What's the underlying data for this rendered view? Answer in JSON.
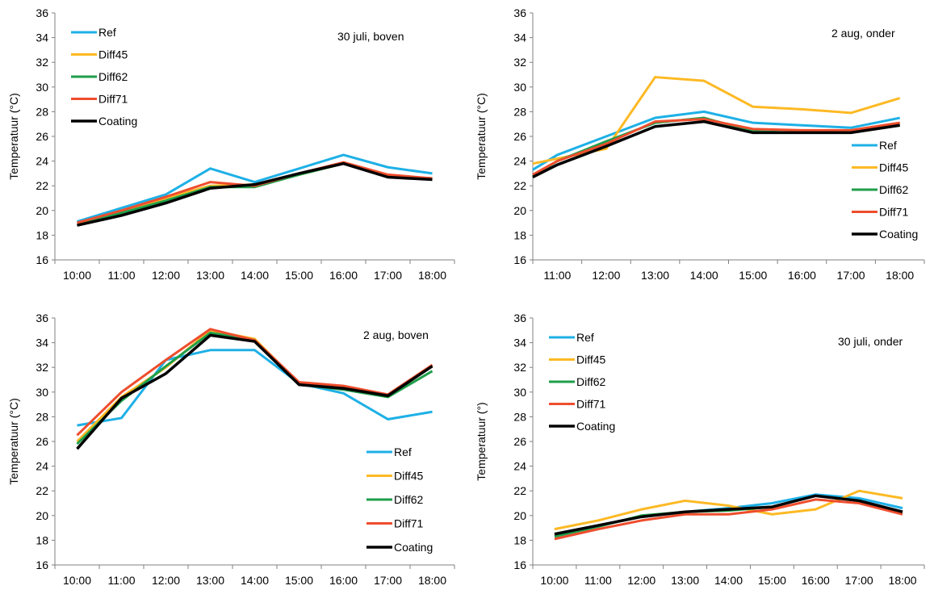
{
  "legend_colors": {
    "Ref": "#1EB0E6",
    "Diff45": "#FDB924",
    "Diff62": "#1E9E4A",
    "Diff71": "#EE4D2D",
    "Coating": "#000000"
  },
  "chart_data": [
    {
      "type": "line",
      "annotation": "30 juli, boven",
      "ylabel": "Temperatuur (°C)",
      "ylim": [
        16,
        36
      ],
      "yticks": [
        16,
        18,
        20,
        22,
        24,
        26,
        28,
        30,
        32,
        34,
        36
      ],
      "categories": [
        "10:00",
        "11:00",
        "12:00",
        "13:00",
        "14:00",
        "15:00",
        "16:00",
        "17:00",
        "18:00"
      ],
      "legend_position": "top-left",
      "series": [
        {
          "name": "Ref",
          "values": [
            19.1,
            20.2,
            21.3,
            23.4,
            22.3,
            23.4,
            24.5,
            23.5,
            23.0
          ]
        },
        {
          "name": "Diff45",
          "values": [
            19.0,
            19.9,
            21.0,
            22.0,
            22.1,
            22.9,
            23.8,
            22.8,
            22.6
          ]
        },
        {
          "name": "Diff62",
          "values": [
            19.0,
            19.8,
            20.8,
            21.9,
            21.9,
            22.9,
            23.8,
            22.8,
            22.6
          ]
        },
        {
          "name": "Diff71",
          "values": [
            19.0,
            20.0,
            21.1,
            22.3,
            22.0,
            23.0,
            23.9,
            22.9,
            22.6
          ]
        },
        {
          "name": "Coating",
          "values": [
            18.8,
            19.6,
            20.6,
            21.8,
            22.1,
            23.0,
            23.8,
            22.7,
            22.5
          ]
        }
      ]
    },
    {
      "type": "line",
      "annotation": "2 aug, onder",
      "ylabel": "Temperatuur (°C)",
      "ylim": [
        16,
        36
      ],
      "yticks": [
        16,
        18,
        20,
        22,
        24,
        26,
        28,
        30,
        32,
        34,
        36
      ],
      "categories": [
        "11:00",
        "12:00",
        "13:00",
        "14:00",
        "15:00",
        "16:00",
        "17:00",
        "18:00"
      ],
      "x_start_offset": -0.66,
      "legend_position": "right",
      "series": [
        {
          "name": "Ref",
          "values": [
            24.5,
            26.0,
            27.5,
            28.0,
            27.1,
            26.9,
            26.7,
            27.5
          ],
          "start": 23.3
        },
        {
          "name": "Diff45",
          "values": [
            24.2,
            25.0,
            30.8,
            30.5,
            28.4,
            28.2,
            27.9,
            29.1
          ],
          "start": 23.8
        },
        {
          "name": "Diff62",
          "values": [
            24.0,
            25.6,
            27.1,
            27.5,
            26.4,
            26.3,
            26.4,
            26.9
          ],
          "start": 22.8
        },
        {
          "name": "Diff71",
          "values": [
            24.0,
            25.4,
            27.2,
            27.4,
            26.6,
            26.5,
            26.5,
            27.1
          ],
          "start": 22.9
        },
        {
          "name": "Coating",
          "values": [
            23.7,
            25.2,
            26.8,
            27.2,
            26.3,
            26.3,
            26.3,
            26.9
          ],
          "start": 22.7
        }
      ]
    },
    {
      "type": "line",
      "annotation": "2 aug, boven",
      "ylabel": "Temperatuur (°C)",
      "ylim": [
        16,
        36
      ],
      "yticks": [
        16,
        18,
        20,
        22,
        24,
        26,
        28,
        30,
        32,
        34,
        36
      ],
      "categories": [
        "10:00",
        "11:00",
        "12:00",
        "13:00",
        "14:00",
        "15:00",
        "16:00",
        "17:00",
        "18:00"
      ],
      "legend_position": "bottom-right",
      "series": [
        {
          "name": "Ref",
          "values": [
            27.3,
            27.9,
            32.6,
            33.4,
            33.4,
            30.7,
            29.9,
            27.8,
            28.4
          ]
        },
        {
          "name": "Diff45",
          "values": [
            26.0,
            29.6,
            32.0,
            35.0,
            34.3,
            30.7,
            30.3,
            29.7,
            32.1
          ]
        },
        {
          "name": "Diff62",
          "values": [
            25.8,
            29.3,
            32.1,
            34.8,
            34.2,
            30.6,
            30.2,
            29.6,
            31.7
          ]
        },
        {
          "name": "Diff71",
          "values": [
            26.5,
            30.0,
            32.6,
            35.1,
            34.2,
            30.8,
            30.5,
            29.8,
            32.2
          ]
        },
        {
          "name": "Coating",
          "values": [
            25.4,
            29.5,
            31.5,
            34.6,
            34.1,
            30.6,
            30.3,
            29.7,
            32.1
          ]
        }
      ]
    },
    {
      "type": "line",
      "annotation": "30 juli, onder",
      "ylabel": "Temperatuur (°)",
      "ylim": [
        16,
        36
      ],
      "yticks": [
        16,
        18,
        20,
        22,
        24,
        26,
        28,
        30,
        32,
        34,
        36
      ],
      "categories": [
        "10:00",
        "11:00",
        "12:00",
        "13:00",
        "14:00",
        "15:00",
        "16:00",
        "17:00",
        "18:00"
      ],
      "legend_position": "top-left",
      "series": [
        {
          "name": "Ref",
          "values": [
            18.5,
            19.2,
            19.9,
            20.3,
            20.6,
            21.0,
            21.7,
            21.4,
            20.6
          ]
        },
        {
          "name": "Diff45",
          "values": [
            18.9,
            19.6,
            20.5,
            21.2,
            20.8,
            20.1,
            20.5,
            22.0,
            21.4
          ]
        },
        {
          "name": "Diff62",
          "values": [
            18.3,
            19.1,
            20.0,
            20.3,
            20.4,
            20.7,
            21.6,
            21.2,
            20.3
          ]
        },
        {
          "name": "Diff71",
          "values": [
            18.1,
            18.9,
            19.6,
            20.1,
            20.1,
            20.5,
            21.3,
            21.0,
            20.1
          ]
        },
        {
          "name": "Coating",
          "values": [
            18.5,
            19.2,
            19.9,
            20.3,
            20.5,
            20.7,
            21.6,
            21.2,
            20.3
          ]
        }
      ]
    }
  ]
}
